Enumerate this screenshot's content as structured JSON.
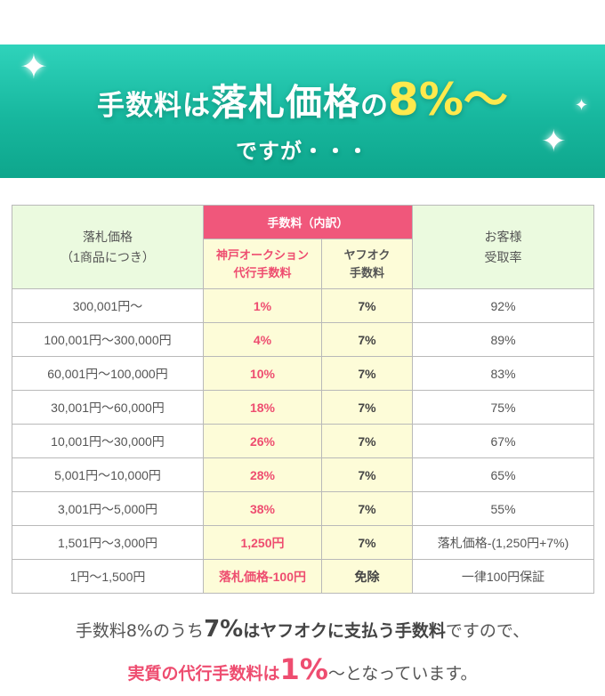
{
  "banner": {
    "title_part1": "手数料は",
    "title_part2": "落札価格",
    "title_part3": "の",
    "title_part4": "8%〜",
    "subtitle": "ですが・・・",
    "accent_color": "#ffe94d",
    "bg_color": "#1bbfa5"
  },
  "table": {
    "header": {
      "price_label_line1": "落札価格",
      "price_label_line2": "（1商品につき）",
      "fee_group": "手数料（内訳）",
      "agency_line1": "神戸オークション",
      "agency_line2": "代行手数料",
      "yafuoku_line1": "ヤフオク",
      "yafuoku_line2": "手数料",
      "customer_line1": "お客様",
      "customer_line2": "受取率"
    },
    "rows": [
      {
        "price": "300,001円〜",
        "agency": "1%",
        "yafuoku": "7%",
        "customer": "92%"
      },
      {
        "price": "100,001円〜300,000円",
        "agency": "4%",
        "yafuoku": "7%",
        "customer": "89%"
      },
      {
        "price": "60,001円〜100,000円",
        "agency": "10%",
        "yafuoku": "7%",
        "customer": "83%"
      },
      {
        "price": "30,001円〜60,000円",
        "agency": "18%",
        "yafuoku": "7%",
        "customer": "75%"
      },
      {
        "price": "10,001円〜30,000円",
        "agency": "26%",
        "yafuoku": "7%",
        "customer": "67%"
      },
      {
        "price": "5,001円〜10,000円",
        "agency": "28%",
        "yafuoku": "7%",
        "customer": "65%"
      },
      {
        "price": "3,001円〜5,000円",
        "agency": "38%",
        "yafuoku": "7%",
        "customer": "55%"
      },
      {
        "price": "1,501円〜3,000円",
        "agency": "1,250円",
        "yafuoku": "7%",
        "customer": "落札価格-(1,250円+7%)"
      },
      {
        "price": "1円〜1,500円",
        "agency": "落札価格-100円",
        "yafuoku": "免除",
        "customer": "一律100円保証"
      }
    ],
    "colors": {
      "fee_header": "#f0577b",
      "header_bg": "#ebfadf",
      "fee_col_bg": "#fdfcd8",
      "pink_text": "#ee4d70"
    }
  },
  "note": {
    "line1_a": "手数料8%のうち",
    "line1_b": "7%",
    "line1_c": "はヤフオクに支払う手数料",
    "line1_d": "ですので、",
    "line2_a": "実質の代行手数料は",
    "line2_b": "1%",
    "line2_c": "〜となっています。"
  }
}
